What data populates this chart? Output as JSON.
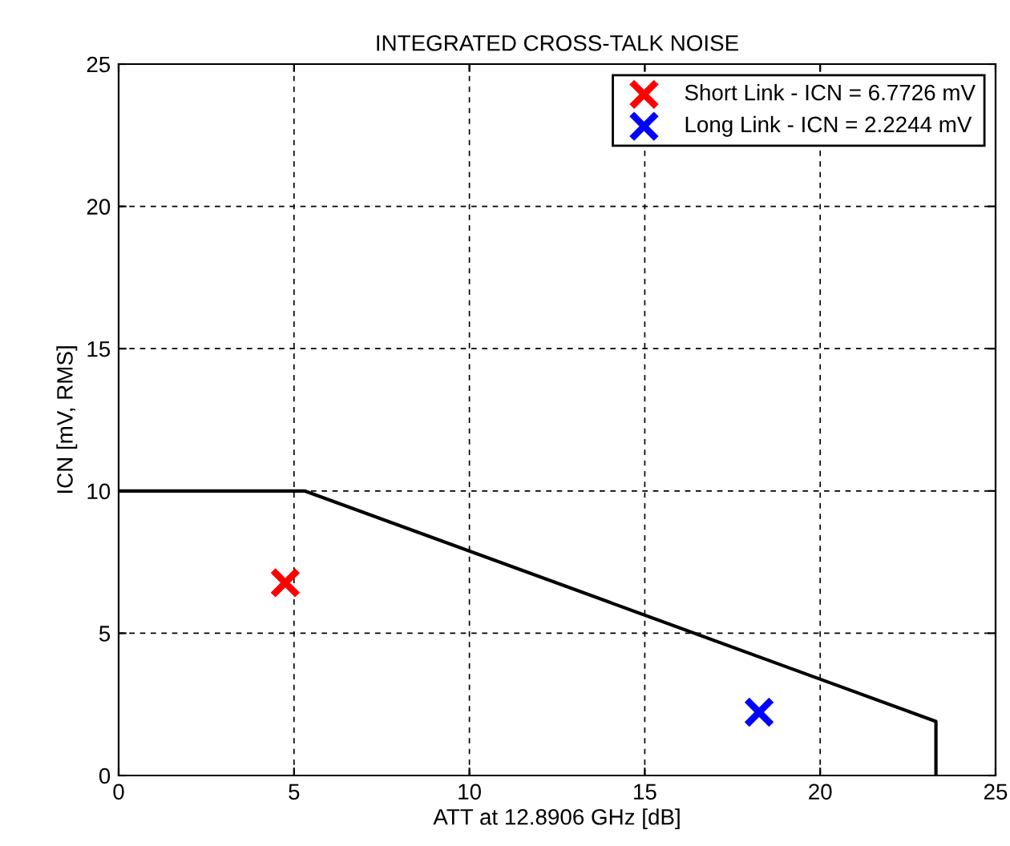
{
  "chart_data": {
    "type": "line",
    "title": "INTEGRATED CROSS-TALK NOISE",
    "xlabel": "ATT at 12.8906 GHz [dB]",
    "ylabel": "ICN [mV, RMS]",
    "xlim": [
      0,
      25
    ],
    "ylim": [
      0,
      25
    ],
    "xticks": [
      0,
      5,
      10,
      15,
      20,
      25
    ],
    "yticks": [
      0,
      5,
      10,
      15,
      20,
      25
    ],
    "grid": true,
    "legend": "top right",
    "series": [
      {
        "color": "#000000",
        "x": [
          0,
          5.3,
          23.3,
          23.3
        ],
        "values": [
          10,
          10,
          1.9,
          0
        ]
      },
      {
        "type": "scatter",
        "name": "Short Link - ICN = 6.7726 mV",
        "color": "#ff0000",
        "marker": "cross",
        "x": [
          4.75
        ],
        "values": [
          6.7726
        ]
      },
      {
        "type": "scatter",
        "name": "Long Link - ICN = 2.2244 mV",
        "color": "#0000ff",
        "marker": "cross",
        "x": [
          18.26
        ],
        "values": [
          2.2244
        ]
      }
    ]
  }
}
